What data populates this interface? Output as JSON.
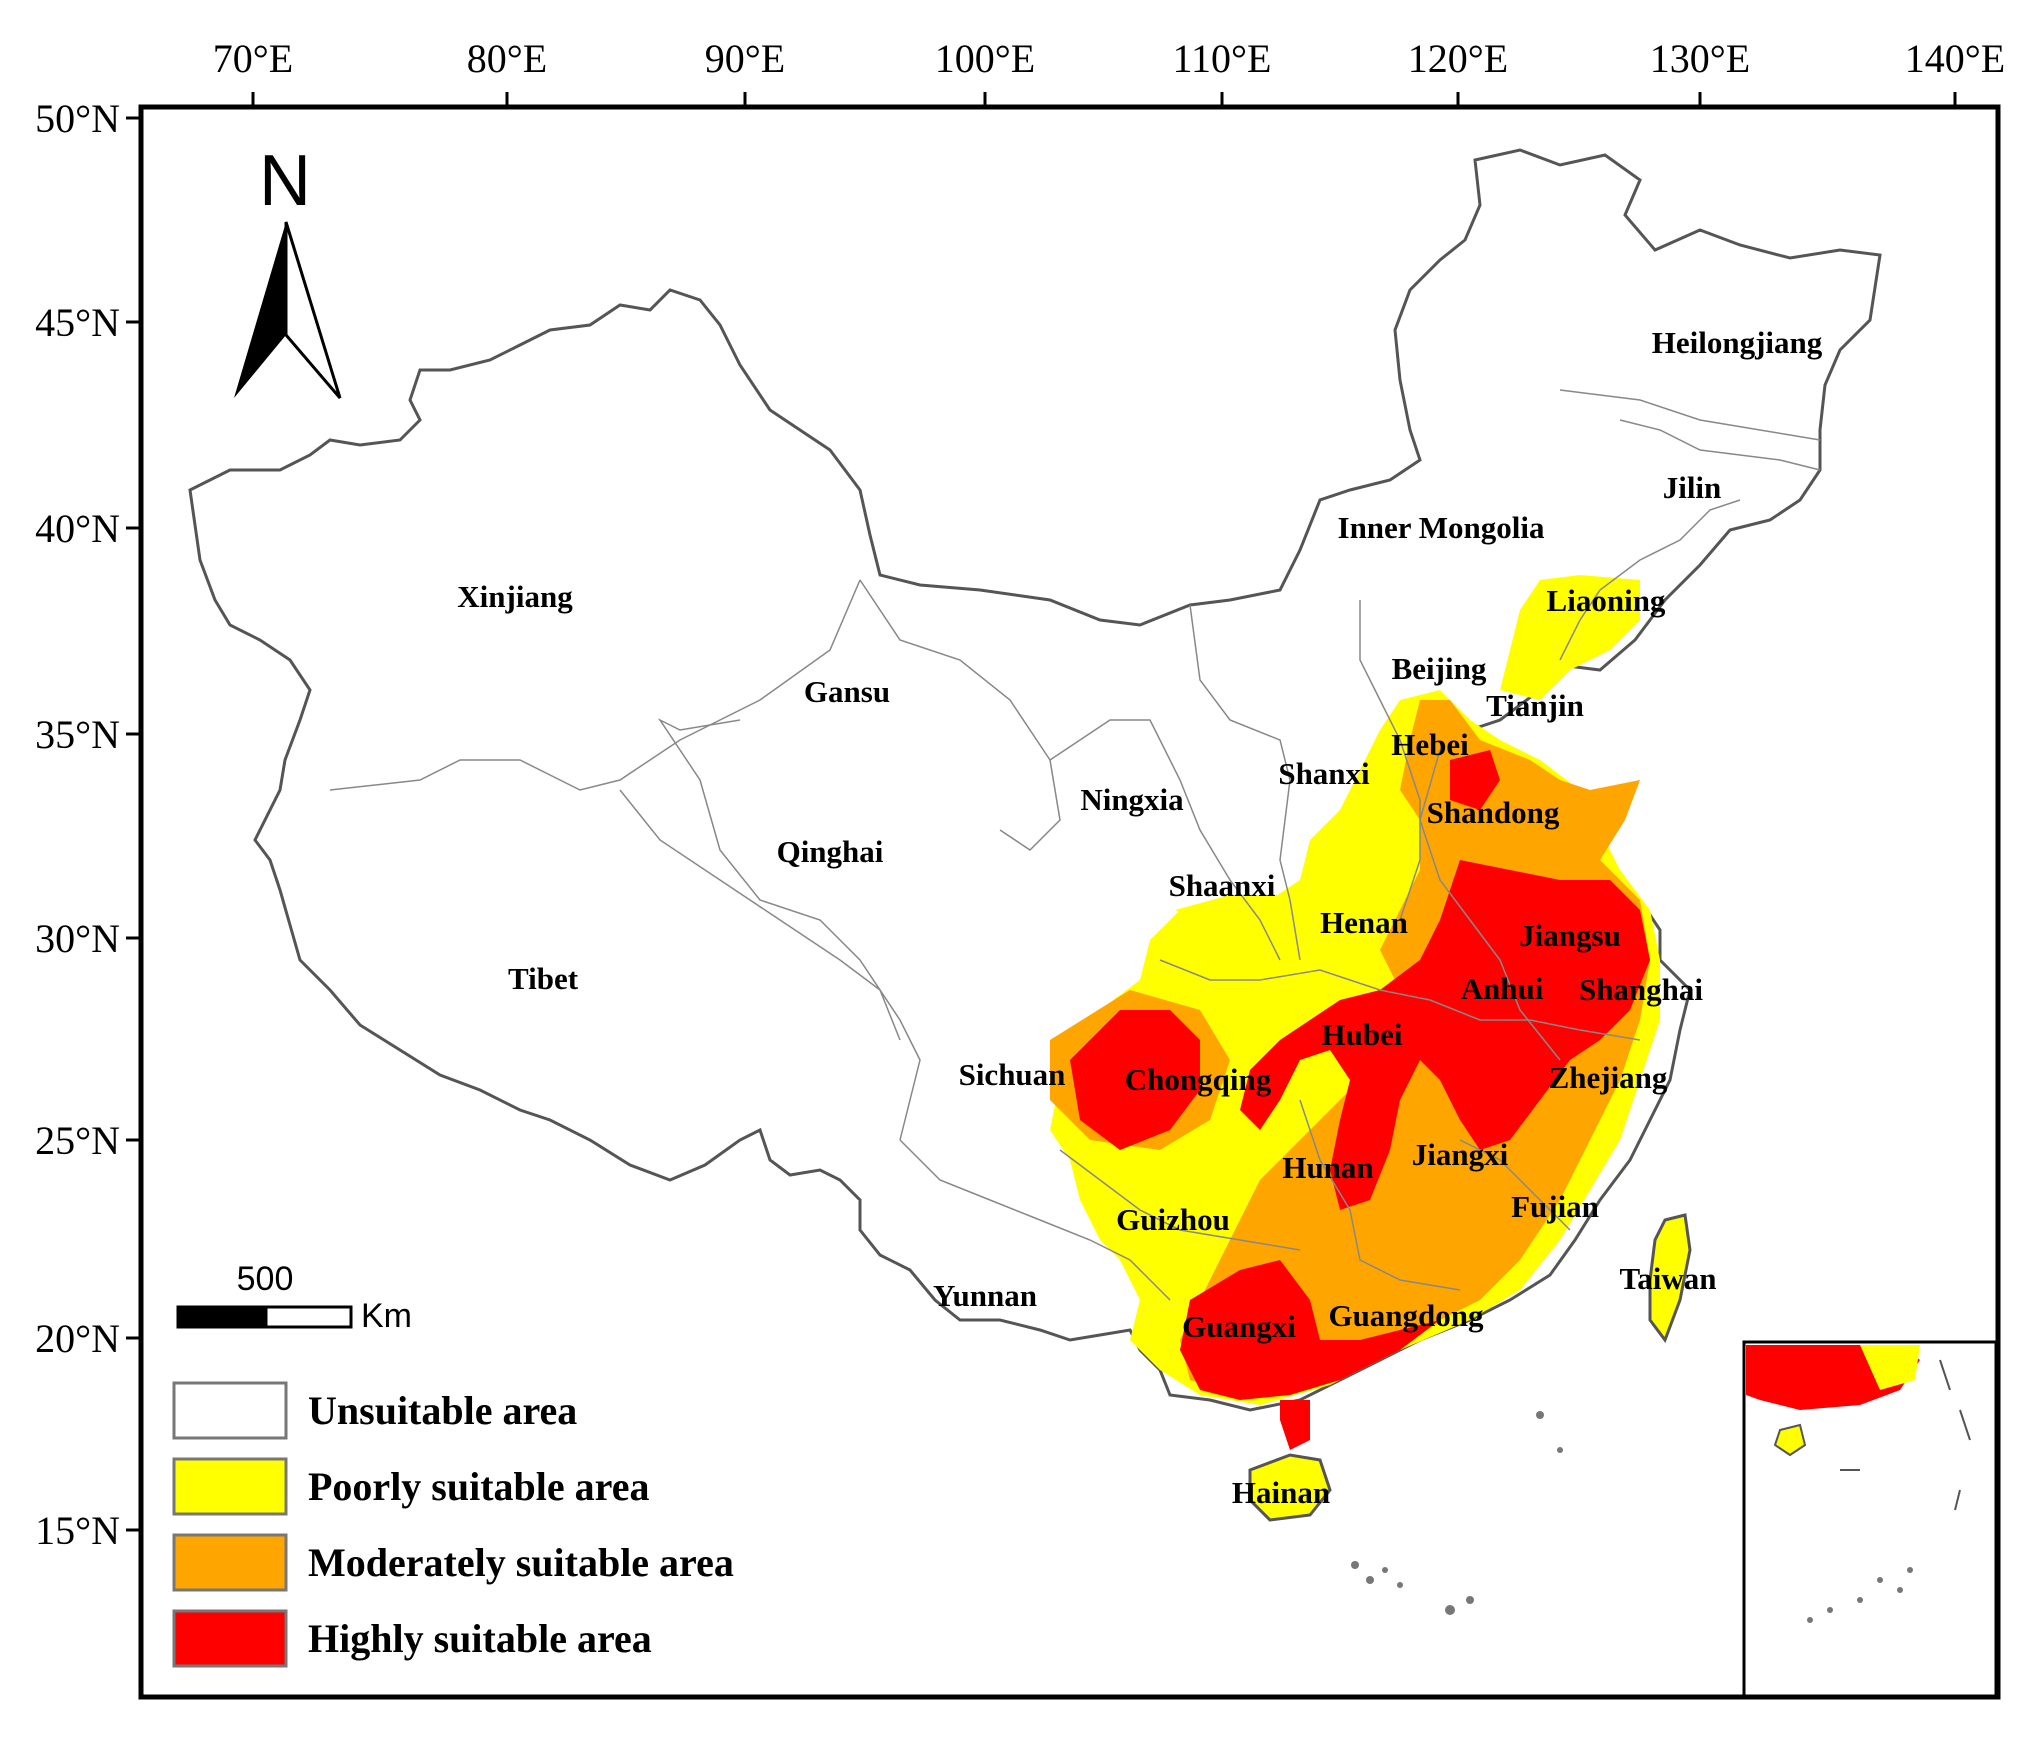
{
  "map": {
    "x_ticks": [
      "70°E",
      "80°E",
      "90°E",
      "100°E",
      "110°E",
      "120°E",
      "130°E",
      "140°E"
    ],
    "y_ticks": [
      "50°N",
      "45°N",
      "40°N",
      "35°N",
      "30°N",
      "25°N",
      "20°N",
      "15°N"
    ],
    "north_label": "N",
    "scale": {
      "value": "500",
      "unit": "Km"
    },
    "legend": [
      {
        "label": "Unsuitable area",
        "color": "#ffffff"
      },
      {
        "label": "Poorly suitable area",
        "color": "#ffff00"
      },
      {
        "label": "Moderately suitable area",
        "color": "#ffa500"
      },
      {
        "label": "Highly suitable area",
        "color": "#ff0000"
      }
    ],
    "provinces": [
      "Heilongjiang",
      "Jilin",
      "Inner Mongolia",
      "Liaoning",
      "Xinjiang",
      "Beijing",
      "Tianjin",
      "Gansu",
      "Hebei",
      "Shanxi",
      "Ningxia",
      "Shandong",
      "Qinghai",
      "Shaanxi",
      "Henan",
      "Jiangsu",
      "Tibet",
      "Anhui",
      "Shanghai",
      "Hubei",
      "Sichuan",
      "Chongqing",
      "Zhejiang",
      "Jiangxi",
      "Hunan",
      "Fujian",
      "Guizhou",
      "Taiwan",
      "Yunnan",
      "Guangxi",
      "Guangdong",
      "Hainan"
    ]
  }
}
